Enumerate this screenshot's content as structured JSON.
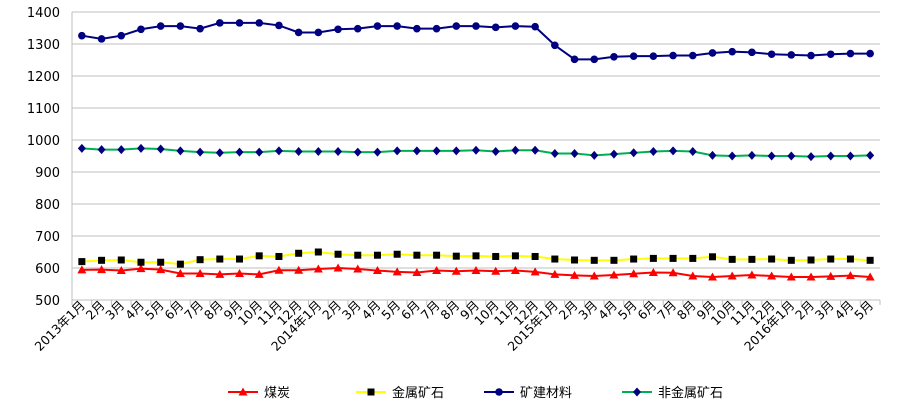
{
  "chart_data": {
    "type": "line",
    "title": "",
    "xlabel": "",
    "ylabel": "",
    "ylim": [
      500,
      1400
    ],
    "yticks": [
      500,
      600,
      700,
      800,
      900,
      1000,
      1100,
      1200,
      1300,
      1400
    ],
    "grid": "horizontal",
    "legend_position": "bottom",
    "categories": [
      "2013年1月",
      "2月",
      "3月",
      "4月",
      "5月",
      "6月",
      "7月",
      "8月",
      "9月",
      "10月",
      "11月",
      "12月",
      "2014年1月",
      "2月",
      "3月",
      "4月",
      "5月",
      "6月",
      "7月",
      "8月",
      "9月",
      "10月",
      "11月",
      "12月",
      "2015年1月",
      "2月",
      "3月",
      "4月",
      "5月",
      "6月",
      "7月",
      "8月",
      "9月",
      "10月",
      "11月",
      "12月",
      "2016年1月",
      "2月",
      "3月",
      "4月",
      "5月"
    ],
    "series": [
      {
        "name": "煤炭",
        "color": "#ff0000",
        "marker": "triangle",
        "values": [
          594,
          595,
          592,
          598,
          595,
          583,
          583,
          580,
          583,
          580,
          593,
          593,
          597,
          600,
          597,
          592,
          588,
          586,
          592,
          590,
          592,
          590,
          592,
          588,
          580,
          577,
          575,
          578,
          582,
          586,
          585,
          575,
          572,
          575,
          578,
          575,
          572,
          572,
          574,
          576,
          572
        ]
      },
      {
        "name": "金属矿石",
        "color": "#ffff00",
        "marker": "square",
        "values": [
          620,
          624,
          625,
          618,
          618,
          612,
          626,
          628,
          628,
          638,
          636,
          646,
          650,
          643,
          640,
          640,
          643,
          640,
          640,
          637,
          638,
          636,
          638,
          636,
          628,
          625,
          624,
          624,
          628,
          630,
          630,
          630,
          635,
          627,
          627,
          628,
          624,
          625,
          628,
          628,
          624
        ]
      },
      {
        "name": "矿建材料",
        "color": "#000080",
        "marker": "circle",
        "values": [
          1326,
          1316,
          1326,
          1346,
          1356,
          1356,
          1348,
          1366,
          1366,
          1366,
          1358,
          1336,
          1336,
          1346,
          1348,
          1356,
          1356,
          1348,
          1348,
          1356,
          1356,
          1352,
          1356,
          1354,
          1296,
          1252,
          1252,
          1260,
          1262,
          1262,
          1264,
          1264,
          1272,
          1276,
          1274,
          1268,
          1266,
          1264,
          1268,
          1270,
          1270
        ]
      },
      {
        "name": "非金属矿石",
        "color": "#00b050",
        "marker": "diamond",
        "marker_color": "#000080",
        "values": [
          974,
          970,
          970,
          974,
          972,
          966,
          962,
          960,
          962,
          962,
          966,
          964,
          964,
          964,
          962,
          962,
          966,
          966,
          966,
          966,
          968,
          964,
          968,
          968,
          958,
          958,
          952,
          956,
          960,
          964,
          966,
          964,
          952,
          950,
          952,
          950,
          950,
          948,
          950,
          950,
          952
        ]
      }
    ]
  }
}
